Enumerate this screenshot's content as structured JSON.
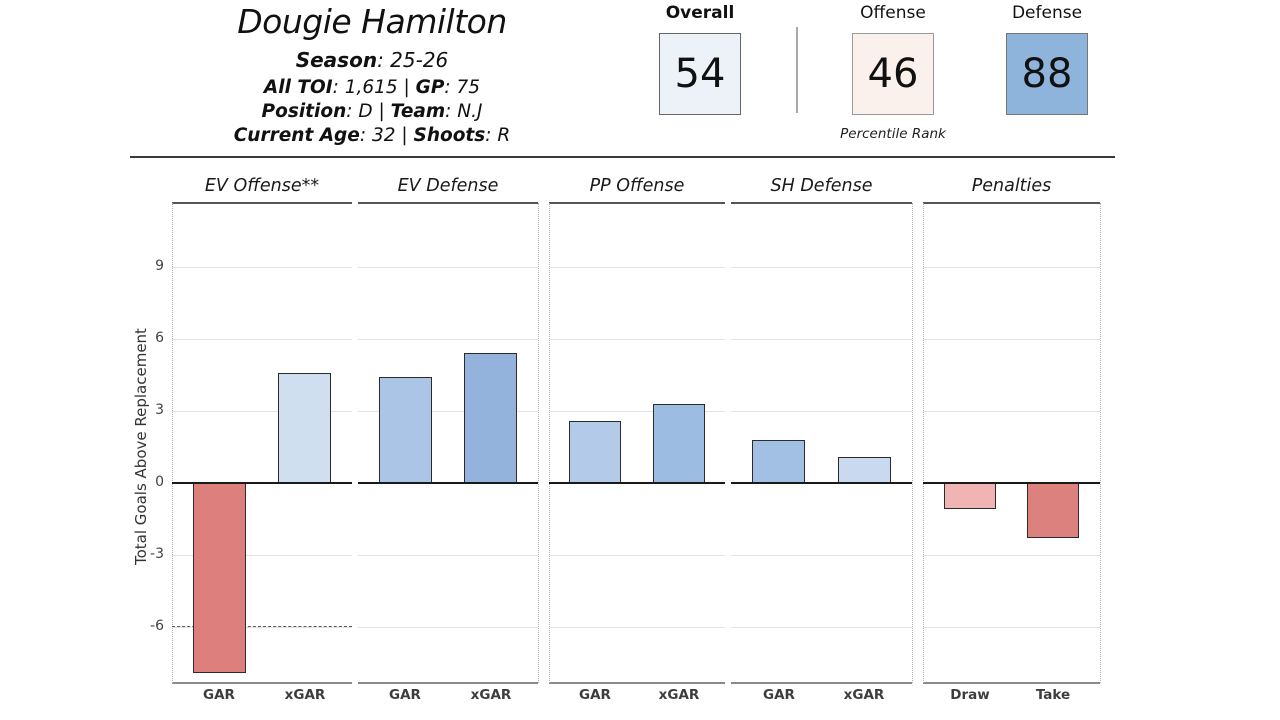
{
  "header": {
    "title": "Dougie Hamilton",
    "label_sep": ": ",
    "part_sep": " | ",
    "lines": [
      {
        "parts": [
          {
            "label": "Season",
            "value": "25-26"
          }
        ]
      },
      {
        "parts": [
          {
            "label": "All TOI",
            "value": "1,615"
          },
          {
            "label": "GP",
            "value": "75"
          }
        ]
      },
      {
        "parts": [
          {
            "label": "Position",
            "value": "D"
          },
          {
            "label": "Team",
            "value": "N.J"
          }
        ]
      },
      {
        "parts": [
          {
            "label": "Current Age",
            "value": "32"
          },
          {
            "label": "Shoots",
            "value": "R"
          }
        ]
      }
    ]
  },
  "percentiles": {
    "caption": "Percentile Rank",
    "boxes": [
      {
        "label": "Overall",
        "value": "54",
        "fill": "#edf2f9",
        "border": "#666666",
        "label_bold": true
      },
      {
        "label": "Offense",
        "value": "46",
        "fill": "#faf1ec",
        "border": "#9a9a9a",
        "label_bold": false
      },
      {
        "label": "Defense",
        "value": "88",
        "fill": "#8fb4dc",
        "border": "#777777",
        "label_bold": false
      }
    ]
  },
  "chart_data": {
    "type": "bar",
    "title": "",
    "ylabel": "Total Goals Above Replacement",
    "yticks": [
      9,
      6,
      3,
      0,
      -3,
      -6
    ],
    "ylim": [
      -8.35,
      11.65
    ],
    "grid": "horizontal",
    "legend": "none",
    "panels": [
      {
        "title": "EV Offense**",
        "categories": [
          "GAR",
          "xGAR"
        ],
        "values": [
          -7.9,
          4.6
        ],
        "colors": [
          "#dd7f7c",
          "#cfdff0"
        ],
        "dashed_line_y": -6
      },
      {
        "title": "EV Defense",
        "categories": [
          "GAR",
          "xGAR"
        ],
        "values": [
          4.4,
          5.4
        ],
        "colors": [
          "#aac5e6",
          "#93b3dd"
        ]
      },
      {
        "title": "PP Offense",
        "categories": [
          "GAR",
          "xGAR"
        ],
        "values": [
          2.6,
          3.3
        ],
        "colors": [
          "#b3cbe9",
          "#9dbce1"
        ]
      },
      {
        "title": "SH Defense",
        "categories": [
          "GAR",
          "xGAR"
        ],
        "values": [
          1.8,
          1.1
        ],
        "colors": [
          "#a2c0e3",
          "#c9daf0"
        ]
      },
      {
        "title": "Penalties",
        "categories": [
          "Draw",
          "Take"
        ],
        "values": [
          -1.1,
          -2.3
        ],
        "colors": [
          "#f0b4b2",
          "#dd817e"
        ]
      }
    ]
  }
}
